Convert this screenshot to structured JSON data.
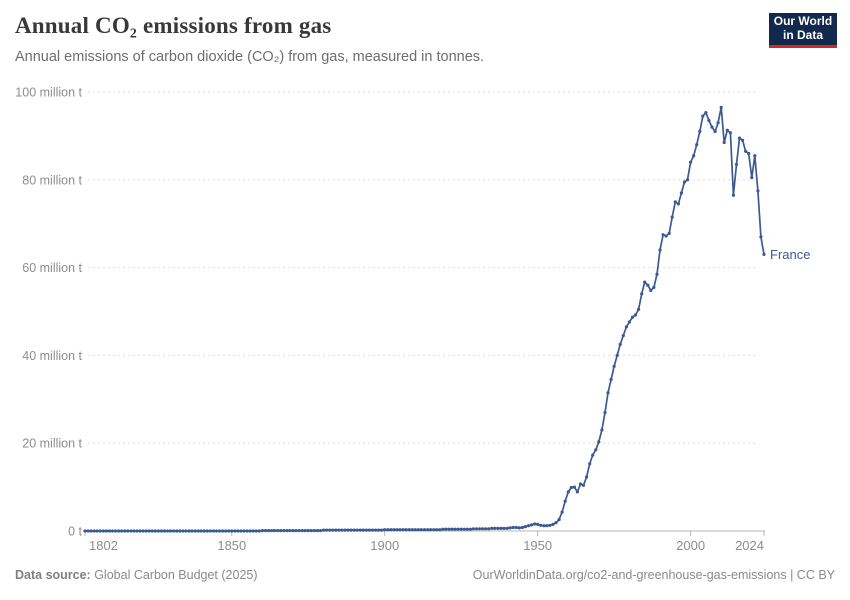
{
  "header": {
    "title": "Annual CO₂ emissions from gas",
    "subtitle": "Annual emissions of carbon dioxide (CO₂) from gas, measured in tonnes."
  },
  "logo": {
    "line1": "Our World",
    "line2": "in Data",
    "bg_color": "#12294d",
    "accent_color": "#d32a1e"
  },
  "footer": {
    "source_label": "Data source:",
    "source_value": " Global Carbon Budget (2025)",
    "credit": "OurWorldinData.org/co2-and-greenhouse-gas-emissions | CC BY"
  },
  "chart_data": {
    "type": "line",
    "title": "Annual CO₂ emissions from gas",
    "xlabel": "",
    "ylabel": "",
    "unit": "tonnes",
    "xlim": [
      1802,
      2024
    ],
    "ylim": [
      0,
      100000000
    ],
    "grid": "horizontal-dashed",
    "legend": "end-of-line-label",
    "line_color": "#3c5a91",
    "axis_text_color": "#8d8d8d",
    "y_ticks": [
      {
        "value": 0,
        "label": "0 t"
      },
      {
        "value": 20000000,
        "label": "20 million t"
      },
      {
        "value": 40000000,
        "label": "40 million t"
      },
      {
        "value": 60000000,
        "label": "60 million t"
      },
      {
        "value": 80000000,
        "label": "80 million t"
      },
      {
        "value": 100000000,
        "label": "100 million t"
      }
    ],
    "x_ticks": [
      "1802",
      "1850",
      "1900",
      "1950",
      "2000",
      "2024"
    ],
    "series": [
      {
        "name": "France",
        "color": "#3c5a91",
        "start_year": 1802,
        "end_year": 2024,
        "unit_scale": "million tonnes",
        "values": [
          0,
          0,
          0,
          0,
          0,
          0,
          0,
          0,
          0,
          0,
          0,
          0,
          0,
          0,
          0,
          0,
          0,
          0,
          0,
          0,
          0,
          0,
          0,
          0,
          0,
          0,
          0,
          0,
          0,
          0,
          0,
          0,
          0,
          0,
          0,
          0,
          0,
          0,
          0,
          0,
          0,
          0,
          0,
          0,
          0,
          0,
          0,
          0,
          0,
          0,
          0,
          0,
          0,
          0,
          0,
          0,
          0,
          0,
          0.1,
          0.1,
          0.1,
          0.1,
          0.1,
          0.1,
          0.1,
          0.1,
          0.1,
          0.1,
          0.1,
          0.1,
          0.1,
          0.1,
          0.1,
          0.1,
          0.1,
          0.1,
          0.1,
          0.1,
          0.2,
          0.2,
          0.2,
          0.2,
          0.2,
          0.2,
          0.2,
          0.2,
          0.2,
          0.2,
          0.2,
          0.2,
          0.2,
          0.2,
          0.2,
          0.2,
          0.2,
          0.2,
          0.2,
          0.2,
          0.3,
          0.3,
          0.3,
          0.3,
          0.3,
          0.3,
          0.3,
          0.3,
          0.3,
          0.3,
          0.3,
          0.3,
          0.3,
          0.3,
          0.3,
          0.3,
          0.3,
          0.3,
          0.3,
          0.4,
          0.4,
          0.4,
          0.4,
          0.4,
          0.4,
          0.4,
          0.4,
          0.4,
          0.4,
          0.5,
          0.5,
          0.5,
          0.5,
          0.5,
          0.5,
          0.6,
          0.6,
          0.6,
          0.6,
          0.6,
          0.6,
          0.7,
          0.8,
          0.8,
          0.7,
          0.8,
          1.0,
          1.2,
          1.4,
          1.6,
          1.5,
          1.3,
          1.2,
          1.2,
          1.3,
          1.5,
          1.9,
          2.6,
          4.3,
          6.8,
          8.9,
          9.9,
          10.0,
          8.9,
          10.7,
          10.4,
          12.3,
          15.3,
          17.3,
          18.5,
          20.3,
          23.0,
          27.0,
          31.5,
          34.5,
          37.5,
          40.0,
          42.5,
          44.5,
          46.5,
          47.6,
          48.7,
          49.2,
          50.5,
          54.0,
          56.7,
          56.0,
          54.8,
          55.5,
          58.5,
          64.0,
          67.5,
          67.2,
          67.8,
          71.5,
          75.0,
          74.5,
          77.0,
          79.5,
          80.0,
          84.0,
          85.5,
          88.0,
          91.0,
          94.5,
          95.3,
          93.5,
          92.0,
          91.0,
          93.0,
          96.5,
          88.5,
          91.3,
          90.7,
          76.5,
          83.5,
          89.5,
          89.0,
          86.5,
          86.0,
          80.5,
          85.5,
          77.5,
          67.0,
          63.0
        ]
      }
    ]
  }
}
